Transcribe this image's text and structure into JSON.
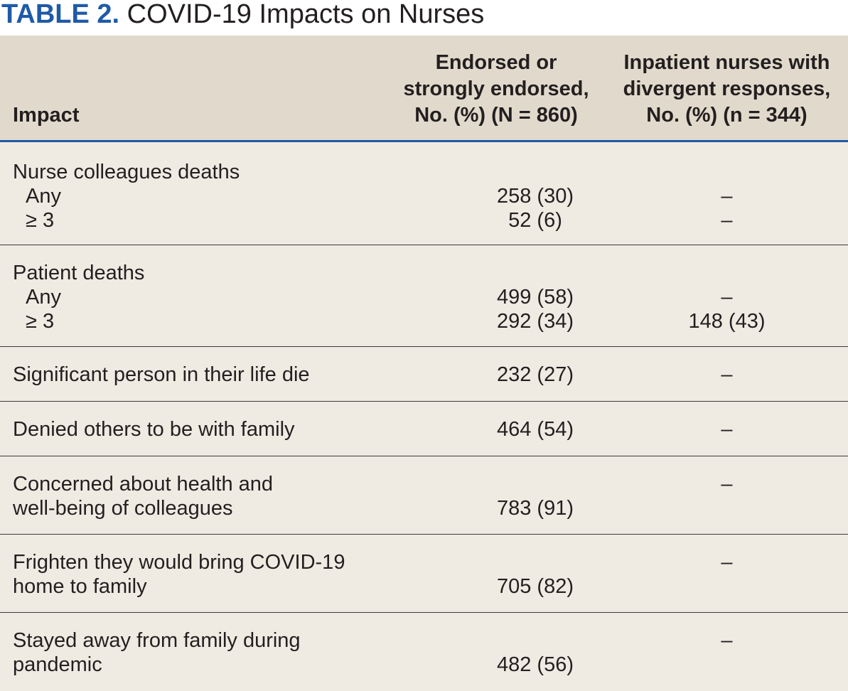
{
  "caption": {
    "label": "TABLE 2.",
    "title": "COVID-19 Impacts on Nurses"
  },
  "headers": {
    "impact": "Impact",
    "endorsed": [
      "Endorsed or",
      "strongly endorsed,",
      "No. (%) (N = 860)"
    ],
    "inpatient": [
      "Inpatient nurses with",
      "divergent responses,",
      "No. (%) (n = 344)"
    ]
  },
  "rows": [
    {
      "impact": "Nurse colleagues deaths",
      "sub": [
        {
          "label": "Any",
          "endorsed": "258 (30)",
          "inpatient": "–"
        },
        {
          "label": "≥ 3",
          "endorsed": "52 (6)",
          "inpatient": "–"
        }
      ]
    },
    {
      "impact": "Patient deaths",
      "sub": [
        {
          "label": "Any",
          "endorsed": "499 (58)",
          "inpatient": "–"
        },
        {
          "label": "≥ 3",
          "endorsed": "292 (34)",
          "inpatient": "148 (43)"
        }
      ]
    },
    {
      "impact": "Significant person in their life die",
      "endorsed": "232 (27)",
      "inpatient": "–"
    },
    {
      "impact": "Denied others to be with family",
      "endorsed": "464 (54)",
      "inpatient": "–"
    },
    {
      "impact": [
        "Concerned about health and",
        "well-being of colleagues"
      ],
      "endorsed": "783 (91)",
      "inpatient": "–"
    },
    {
      "impact": [
        "Frighten they would bring COVID-19",
        "home to family"
      ],
      "endorsed": "705 (82)",
      "inpatient": "–"
    },
    {
      "impact": [
        "Stayed away from family during",
        "pandemic"
      ],
      "endorsed": "482 (56)",
      "inpatient": "–"
    }
  ]
}
